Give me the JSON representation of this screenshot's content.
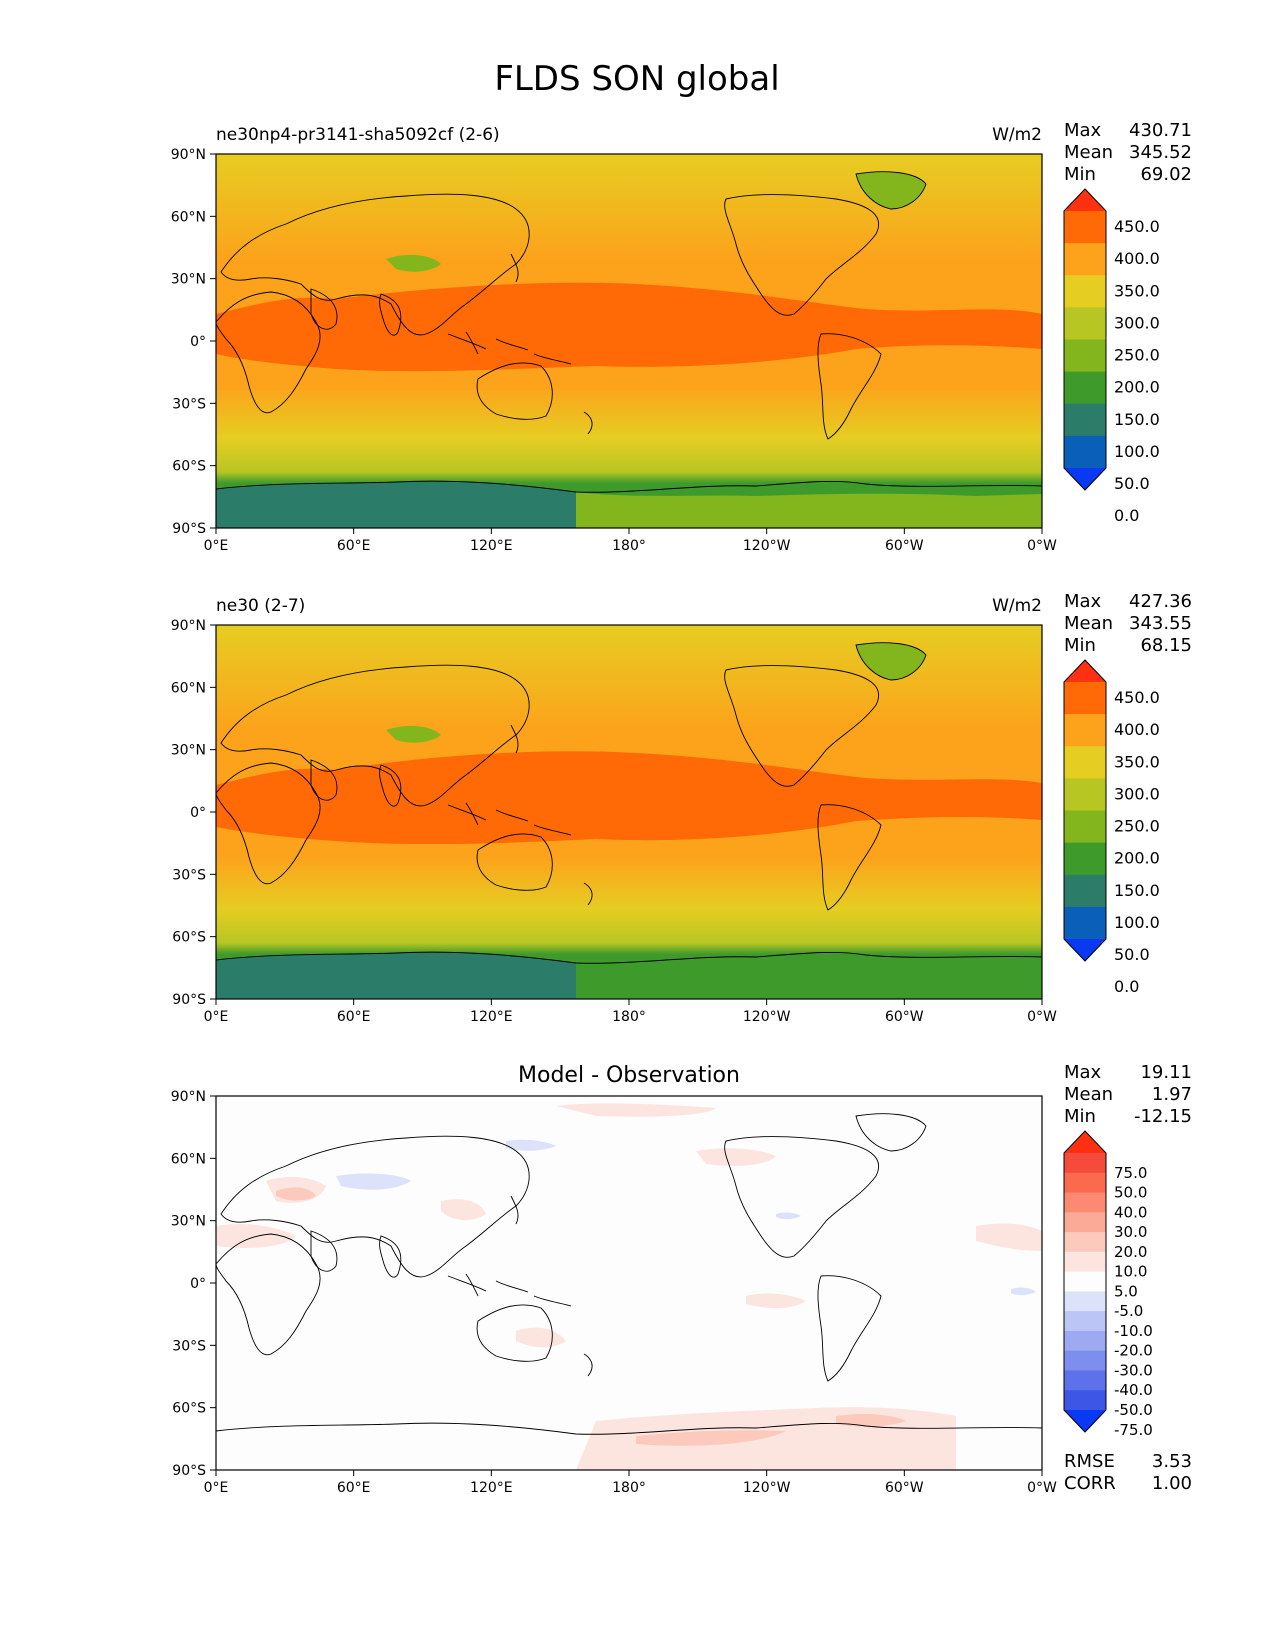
{
  "figure": {
    "title": "FLDS SON global"
  },
  "axes": {
    "lat_ticks": [
      "90°N",
      "60°N",
      "30°N",
      "0°",
      "30°S",
      "60°S",
      "90°S"
    ],
    "lon_ticks": [
      "0°E",
      "60°E",
      "120°E",
      "180°",
      "120°W",
      "60°W",
      "0°W"
    ]
  },
  "panels": [
    {
      "id": "test",
      "left_title": "ne30np4-pr3141-sha5092cf (2-6)",
      "center_title": "",
      "units": "W/m2",
      "stats": [
        {
          "label": "Max",
          "value": "430.71"
        },
        {
          "label": "Mean",
          "value": "345.52"
        },
        {
          "label": "Min",
          "value": "69.02"
        }
      ],
      "colorbar": {
        "levels": [
          "450.0",
          "400.0",
          "350.0",
          "300.0",
          "250.0",
          "200.0",
          "150.0",
          "100.0",
          "50.0",
          "0.0"
        ],
        "colors": [
          "#ff3110",
          "#ff6a07",
          "#fca31b",
          "#e6cd22",
          "#b8c623",
          "#83b61d",
          "#3f9a2c",
          "#2c7c6a",
          "#0a60b8",
          "#0a39f3"
        ]
      }
    },
    {
      "id": "reference",
      "left_title": "ne30 (2-7)",
      "center_title": "",
      "units": "W/m2",
      "stats": [
        {
          "label": "Max",
          "value": "427.36"
        },
        {
          "label": "Mean",
          "value": "343.55"
        },
        {
          "label": "Min",
          "value": "68.15"
        }
      ],
      "colorbar": {
        "levels": [
          "450.0",
          "400.0",
          "350.0",
          "300.0",
          "250.0",
          "200.0",
          "150.0",
          "100.0",
          "50.0",
          "0.0"
        ],
        "colors": [
          "#ff3110",
          "#ff6a07",
          "#fca31b",
          "#e6cd22",
          "#b8c623",
          "#83b61d",
          "#3f9a2c",
          "#2c7c6a",
          "#0a60b8",
          "#0a39f3"
        ]
      }
    },
    {
      "id": "difference",
      "left_title": "",
      "center_title": "Model - Observation",
      "units": "",
      "stats": [
        {
          "label": "Max",
          "value": "19.11"
        },
        {
          "label": "Mean",
          "value": "1.97"
        },
        {
          "label": "Min",
          "value": "-12.15"
        }
      ],
      "colorbar": {
        "levels": [
          "75.0",
          "50.0",
          "40.0",
          "30.0",
          "20.0",
          "10.0",
          "5.0",
          "-5.0",
          "-10.0",
          "-20.0",
          "-30.0",
          "-40.0",
          "-50.0",
          "-75.0"
        ],
        "colors": [
          "#ff3010",
          "#f54a3c",
          "#fb6a4f",
          "#fc8a72",
          "#fcaa98",
          "#fcc9bd",
          "#fde5df",
          "#fdfdfd",
          "#dde2fb",
          "#bcc6f6",
          "#9daaf2",
          "#7d8eee",
          "#5d72ea",
          "#3d56e6",
          "#0a39f3"
        ]
      },
      "metrics": [
        {
          "label": "RMSE",
          "value": "3.53"
        },
        {
          "label": "CORR",
          "value": "1.00"
        }
      ]
    }
  ]
}
